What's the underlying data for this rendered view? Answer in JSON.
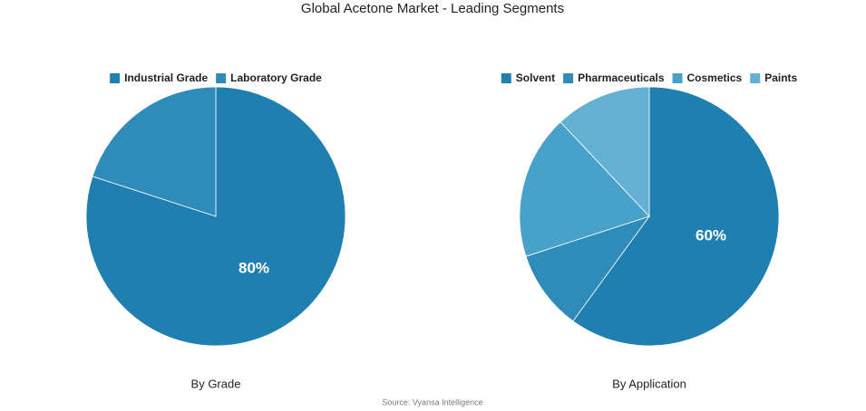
{
  "title": "Global Acetone Market - Leading Segments",
  "source": "Source: Vyansa Intelligence",
  "chart_data": [
    {
      "type": "pie",
      "title": "By Grade",
      "categories": [
        "Industrial Grade",
        "Laboratory Grade"
      ],
      "values": [
        80,
        20
      ],
      "value_labels": [
        "80%",
        null
      ],
      "colors": [
        "#1f7fb0",
        "#2e8bba"
      ]
    },
    {
      "type": "pie",
      "title": "By Application",
      "categories": [
        "Solvent",
        "Pharmaceuticals",
        "Cosmetics",
        "Paints"
      ],
      "values": [
        60,
        10,
        18,
        12
      ],
      "value_labels": [
        "60%",
        null,
        null,
        null
      ],
      "colors": [
        "#1f7fb0",
        "#2e8bba",
        "#47a1c8",
        "#62b1d3"
      ]
    }
  ]
}
